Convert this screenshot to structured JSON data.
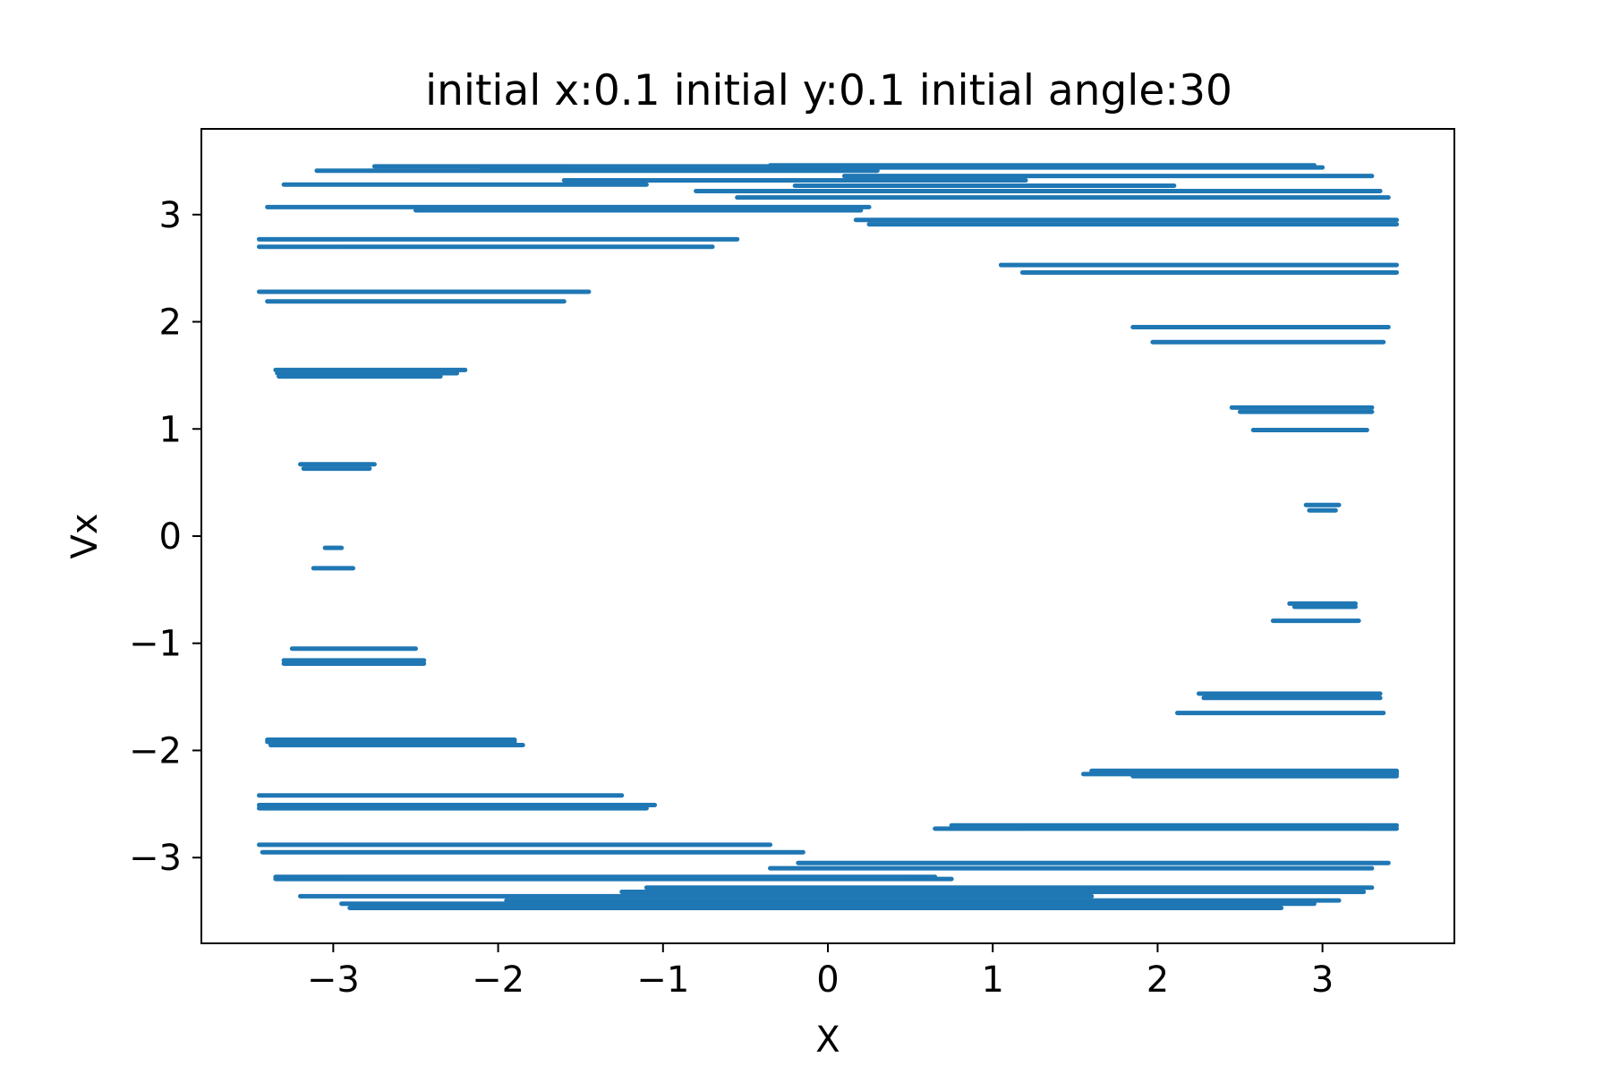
{
  "chart_data": {
    "type": "scatter",
    "title": "initial x:0.1  initial y:0.1 initial angle:30",
    "xlabel": "X",
    "ylabel": "Vx",
    "xlim": [
      -3.8,
      3.8
    ],
    "ylim": [
      -3.8,
      3.8
    ],
    "grid": false,
    "series_color": "#1f77b4",
    "xticks": [
      {
        "value": -3,
        "label": "−3"
      },
      {
        "value": -2,
        "label": "−2"
      },
      {
        "value": -1,
        "label": "−1"
      },
      {
        "value": 0,
        "label": "0"
      },
      {
        "value": 1,
        "label": "1"
      },
      {
        "value": 2,
        "label": "2"
      },
      {
        "value": 3,
        "label": "3"
      }
    ],
    "yticks": [
      {
        "value": -3,
        "label": "−3"
      },
      {
        "value": -2,
        "label": "−2"
      },
      {
        "value": -1,
        "label": "−1"
      },
      {
        "value": 0,
        "label": "0"
      },
      {
        "value": 1,
        "label": "1"
      },
      {
        "value": 2,
        "label": "2"
      },
      {
        "value": 3,
        "label": "3"
      }
    ],
    "segments": [
      {
        "x1": -2.75,
        "x2": 2.0,
        "y": 3.45
      },
      {
        "x1": -3.1,
        "x2": 0.3,
        "y": 3.41
      },
      {
        "x1": -2.1,
        "x2": 3.0,
        "y": 3.44
      },
      {
        "x1": -0.35,
        "x2": 2.95,
        "y": 3.46
      },
      {
        "x1": 0.1,
        "x2": 3.3,
        "y": 3.36
      },
      {
        "x1": -1.6,
        "x2": 1.2,
        "y": 3.32
      },
      {
        "x1": -3.3,
        "x2": -1.1,
        "y": 3.28
      },
      {
        "x1": -0.2,
        "x2": 2.1,
        "y": 3.27
      },
      {
        "x1": -0.8,
        "x2": 3.35,
        "y": 3.22
      },
      {
        "x1": -0.55,
        "x2": 3.4,
        "y": 3.16
      },
      {
        "x1": -3.4,
        "x2": 0.25,
        "y": 3.07
      },
      {
        "x1": -2.5,
        "x2": 0.2,
        "y": 3.04
      },
      {
        "x1": 0.17,
        "x2": 3.45,
        "y": 2.95
      },
      {
        "x1": 0.25,
        "x2": 3.45,
        "y": 2.91
      },
      {
        "x1": -3.45,
        "x2": -0.55,
        "y": 2.77
      },
      {
        "x1": -3.45,
        "x2": -0.7,
        "y": 2.7
      },
      {
        "x1": 1.05,
        "x2": 3.45,
        "y": 2.53
      },
      {
        "x1": 1.18,
        "x2": 3.45,
        "y": 2.46
      },
      {
        "x1": -3.45,
        "x2": -1.45,
        "y": 2.28
      },
      {
        "x1": -3.4,
        "x2": -1.6,
        "y": 2.19
      },
      {
        "x1": 1.85,
        "x2": 3.4,
        "y": 1.95
      },
      {
        "x1": 1.97,
        "x2": 3.37,
        "y": 1.81
      },
      {
        "x1": -3.35,
        "x2": -2.2,
        "y": 1.55
      },
      {
        "x1": -3.34,
        "x2": -2.25,
        "y": 1.52
      },
      {
        "x1": -3.33,
        "x2": -2.35,
        "y": 1.49
      },
      {
        "x1": 2.45,
        "x2": 3.3,
        "y": 1.2
      },
      {
        "x1": 2.5,
        "x2": 3.3,
        "y": 1.16
      },
      {
        "x1": 2.58,
        "x2": 3.27,
        "y": 0.99
      },
      {
        "x1": -3.2,
        "x2": -2.75,
        "y": 0.67
      },
      {
        "x1": -3.18,
        "x2": -2.78,
        "y": 0.63
      },
      {
        "x1": 2.9,
        "x2": 3.1,
        "y": 0.29
      },
      {
        "x1": 2.92,
        "x2": 3.08,
        "y": 0.24
      },
      {
        "x1": -3.05,
        "x2": -2.95,
        "y": -0.11
      },
      {
        "x1": -3.12,
        "x2": -2.88,
        "y": -0.3
      },
      {
        "x1": 2.8,
        "x2": 3.2,
        "y": -0.63
      },
      {
        "x1": 2.83,
        "x2": 3.2,
        "y": -0.66
      },
      {
        "x1": 2.7,
        "x2": 3.22,
        "y": -0.79
      },
      {
        "x1": -3.25,
        "x2": -2.5,
        "y": -1.05
      },
      {
        "x1": -3.3,
        "x2": -2.45,
        "y": -1.16
      },
      {
        "x1": -3.3,
        "x2": -2.45,
        "y": -1.19
      },
      {
        "x1": 2.25,
        "x2": 3.35,
        "y": -1.47
      },
      {
        "x1": 2.28,
        "x2": 3.35,
        "y": -1.51
      },
      {
        "x1": 2.12,
        "x2": 3.37,
        "y": -1.65
      },
      {
        "x1": -3.4,
        "x2": -1.9,
        "y": -1.9
      },
      {
        "x1": -3.4,
        "x2": -1.9,
        "y": -1.92
      },
      {
        "x1": -3.38,
        "x2": -1.85,
        "y": -1.95
      },
      {
        "x1": 1.6,
        "x2": 3.45,
        "y": -2.19
      },
      {
        "x1": 1.6,
        "x2": 3.45,
        "y": -2.2
      },
      {
        "x1": 1.55,
        "x2": 3.45,
        "y": -2.22
      },
      {
        "x1": 1.85,
        "x2": 3.45,
        "y": -2.24
      },
      {
        "x1": -3.45,
        "x2": -1.25,
        "y": -2.42
      },
      {
        "x1": -3.45,
        "x2": -1.05,
        "y": -2.51
      },
      {
        "x1": -3.45,
        "x2": -1.1,
        "y": -2.54
      },
      {
        "x1": 0.75,
        "x2": 3.45,
        "y": -2.7
      },
      {
        "x1": 0.65,
        "x2": 3.45,
        "y": -2.73
      },
      {
        "x1": -3.45,
        "x2": -0.35,
        "y": -2.88
      },
      {
        "x1": -3.43,
        "x2": -0.15,
        "y": -2.95
      },
      {
        "x1": -0.18,
        "x2": 3.4,
        "y": -3.05
      },
      {
        "x1": -0.35,
        "x2": 3.3,
        "y": -3.1
      },
      {
        "x1": -3.35,
        "x2": 0.65,
        "y": -3.18
      },
      {
        "x1": -3.35,
        "x2": 0.75,
        "y": -3.2
      },
      {
        "x1": -1.1,
        "x2": 3.3,
        "y": -3.28
      },
      {
        "x1": -1.25,
        "x2": 3.25,
        "y": -3.32
      },
      {
        "x1": -3.2,
        "x2": 1.6,
        "y": -3.36
      },
      {
        "x1": -1.95,
        "x2": 3.1,
        "y": -3.4
      },
      {
        "x1": -2.95,
        "x2": 2.95,
        "y": -3.43
      },
      {
        "x1": -2.9,
        "x2": 2.75,
        "y": -3.47
      }
    ]
  }
}
